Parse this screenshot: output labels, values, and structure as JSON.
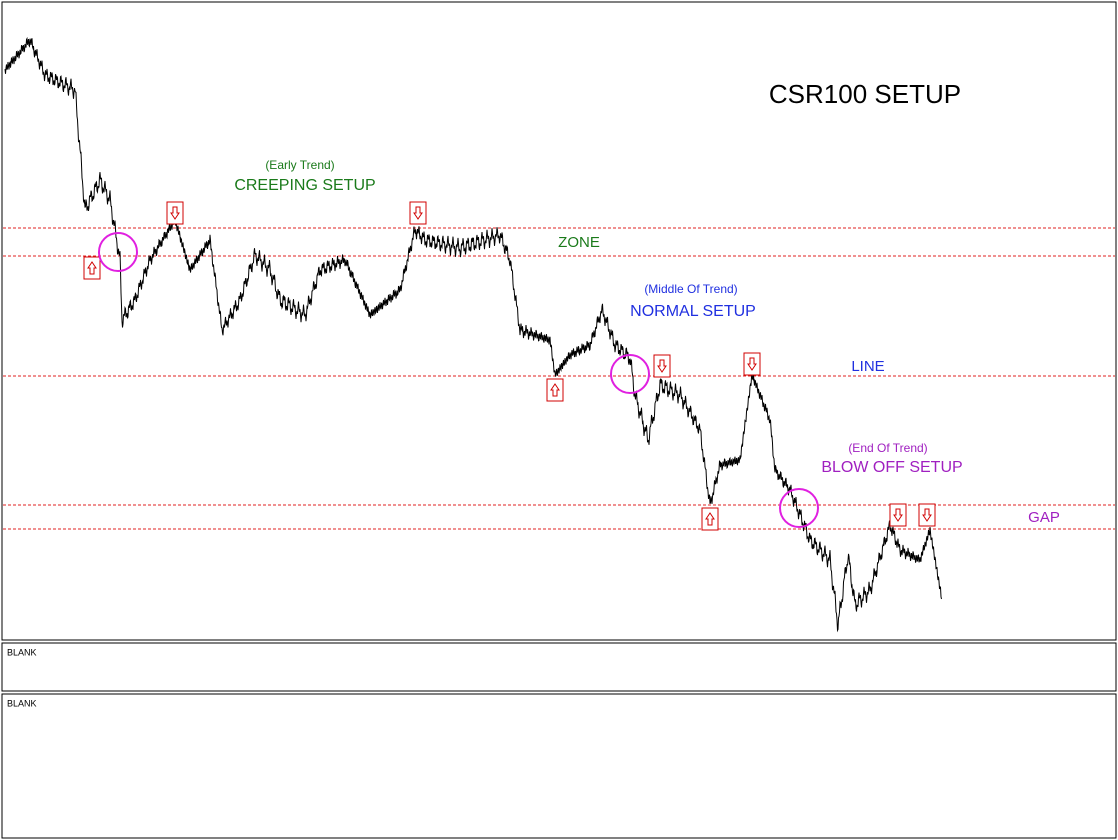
{
  "title": "CSR100 SETUP",
  "setups": [
    {
      "stage": "(Early Trend)",
      "name": "CREEPING SETUP"
    },
    {
      "stage": "(Middle Of Trend)",
      "name": "NORMAL SETUP"
    },
    {
      "stage": "(End Of Trend)",
      "name": "BLOW OFF SETUP"
    }
  ],
  "levels": [
    "ZONE",
    "LINE",
    "GAP"
  ],
  "panels": [
    "BLANK",
    "BLANK"
  ]
}
